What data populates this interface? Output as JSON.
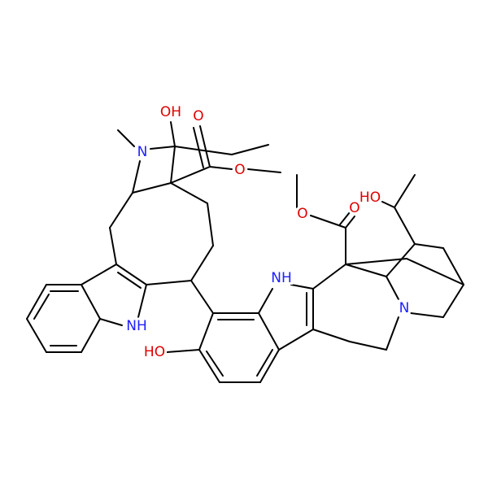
{
  "atoms": [
    {
      "label": "OH"
    },
    {
      "label": "N"
    },
    {
      "label": "O"
    },
    {
      "label": "O"
    },
    {
      "label": "NH"
    },
    {
      "label": "HO"
    },
    {
      "label": "NH"
    },
    {
      "label": "O"
    },
    {
      "label": "O"
    },
    {
      "label": "HO"
    },
    {
      "label": "N"
    }
  ]
}
